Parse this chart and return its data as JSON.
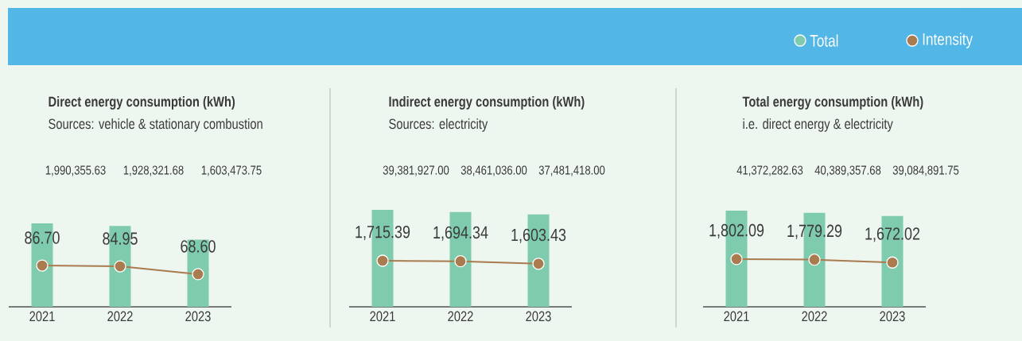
{
  "chart_data": [
    {
      "type": "bar",
      "title": "Direct energy consumption (kWh)",
      "subtitle": "Sources: vehicle & stationary combustion",
      "categories": [
        "2021",
        "2022",
        "2023"
      ],
      "legend": "top right",
      "series": [
        {
          "name": "Total",
          "type": "bar",
          "color": "#7fcbad",
          "values": [
            1990355.63,
            1928321.68,
            1603473.75
          ],
          "value_labels": [
            "1,990,355.63",
            "1,928,321.68",
            "1,603,473.75"
          ]
        },
        {
          "name": "Intensity",
          "type": "line",
          "axis": "y2",
          "marker": "circle",
          "color": "#a97b4e",
          "values": [
            86.7,
            84.95,
            68.6
          ],
          "value_labels": [
            "86.70",
            "84.95",
            "68.60"
          ]
        }
      ]
    },
    {
      "type": "bar",
      "title": "Indirect energy consumption (kWh)",
      "subtitle": "Sources: electricity",
      "categories": [
        "2021",
        "2022",
        "2023"
      ],
      "series": [
        {
          "type": "bar",
          "color": "#7fcbad",
          "values": [
            39381927.0,
            38461036.0,
            37481418.0
          ],
          "value_labels": [
            "39,381,927.00",
            "38,461,036.00",
            "37,481,418.00"
          ]
        },
        {
          "type": "line",
          "axis": "y2",
          "marker": "circle",
          "color": "#a97b4e",
          "values": [
            1715.39,
            1694.34,
            1603.43
          ],
          "value_labels": [
            "1,715.39",
            "1,694.34",
            "1,603.43"
          ]
        }
      ]
    },
    {
      "type": "bar",
      "title": "Total energy consumption (kWh)",
      "subtitle": "i.e. direct energy & electricity",
      "categories": [
        "2021",
        "2022",
        "2023"
      ],
      "series": [
        {
          "type": "bar",
          "color": "#7fcbad",
          "values": [
            41372282.63,
            40389357.68,
            39084891.75
          ],
          "value_labels": [
            "41,372,282.63",
            "40,389,357.68",
            "39,084,891.75"
          ]
        },
        {
          "type": "line",
          "axis": "y2",
          "marker": "circle",
          "color": "#a97b4e",
          "values": [
            1802.09,
            1779.29,
            1672.02
          ],
          "value_labels": [
            "1,802.09",
            "1,779.29",
            "1,672.02"
          ]
        }
      ]
    }
  ]
}
